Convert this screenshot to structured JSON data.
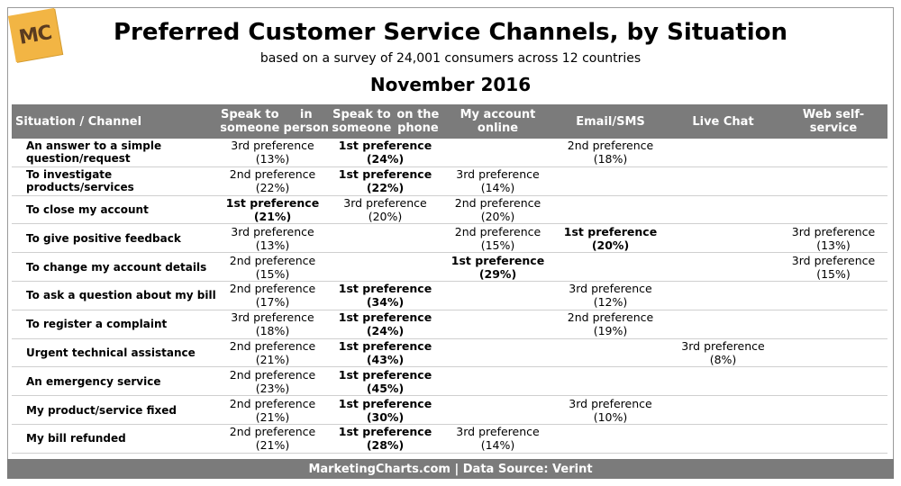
{
  "logo_text": "MC",
  "title": "Preferred Customer Service Channels, by Situation",
  "subtitle": "based on a survey of 24,001 consumers across 12 countries",
  "date": "November 2016",
  "footer": "MarketingCharts.com | Data Source: Verint",
  "chart_data": {
    "type": "table",
    "title": "Preferred Customer Service Channels, by Situation",
    "corner_label": "Situation / Channel",
    "columns": [
      [
        "Speak to someone",
        "in person"
      ],
      [
        "Speak to someone",
        "on the phone"
      ],
      [
        "My account online"
      ],
      [
        "Email/SMS"
      ],
      [
        "Live Chat"
      ],
      [
        "Web self-service"
      ]
    ],
    "rows": [
      {
        "label": [
          "An answer to a simple",
          "question/request"
        ],
        "cells": [
          {
            "rank": "3rd preference",
            "pct": "(13%)",
            "first": false
          },
          {
            "rank": "1st preference",
            "pct": "(24%)",
            "first": true
          },
          null,
          {
            "rank": "2nd preference",
            "pct": "(18%)",
            "first": false
          },
          null,
          null
        ]
      },
      {
        "label": [
          "To investigate",
          "products/services"
        ],
        "cells": [
          {
            "rank": "2nd preference",
            "pct": "(22%)",
            "first": false
          },
          {
            "rank": "1st preference",
            "pct": "(22%)",
            "first": true
          },
          {
            "rank": "3rd preference",
            "pct": "(14%)",
            "first": false
          },
          null,
          null,
          null
        ]
      },
      {
        "label": [
          "To close my account"
        ],
        "cells": [
          {
            "rank": "1st preference",
            "pct": "(21%)",
            "first": true
          },
          {
            "rank": "3rd preference",
            "pct": "(20%)",
            "first": false
          },
          {
            "rank": "2nd preference",
            "pct": "(20%)",
            "first": false
          },
          null,
          null,
          null
        ]
      },
      {
        "label": [
          "To give positive feedback"
        ],
        "cells": [
          {
            "rank": "3rd preference",
            "pct": "(13%)",
            "first": false
          },
          null,
          {
            "rank": "2nd preference",
            "pct": "(15%)",
            "first": false
          },
          {
            "rank": "1st preference",
            "pct": "(20%)",
            "first": true
          },
          null,
          {
            "rank": "3rd preference",
            "pct": "(13%)",
            "first": false
          }
        ]
      },
      {
        "label": [
          "To change my account details"
        ],
        "cells": [
          {
            "rank": "2nd preference",
            "pct": "(15%)",
            "first": false
          },
          null,
          {
            "rank": "1st preference",
            "pct": "(29%)",
            "first": true
          },
          null,
          null,
          {
            "rank": "3rd preference",
            "pct": "(15%)",
            "first": false
          }
        ]
      },
      {
        "label": [
          "To ask a question about my bill"
        ],
        "cells": [
          {
            "rank": "2nd preference",
            "pct": "(17%)",
            "first": false
          },
          {
            "rank": "1st preference",
            "pct": "(34%)",
            "first": true
          },
          null,
          {
            "rank": "3rd preference",
            "pct": "(12%)",
            "first": false
          },
          null,
          null
        ]
      },
      {
        "label": [
          "To register a complaint"
        ],
        "cells": [
          {
            "rank": "3rd preference",
            "pct": "(18%)",
            "first": false
          },
          {
            "rank": "1st preference",
            "pct": "(24%)",
            "first": true
          },
          null,
          {
            "rank": "2nd preference",
            "pct": "(19%)",
            "first": false
          },
          null,
          null
        ]
      },
      {
        "label": [
          "Urgent technical assistance"
        ],
        "cells": [
          {
            "rank": "2nd preference",
            "pct": "(21%)",
            "first": false
          },
          {
            "rank": "1st preference",
            "pct": "(43%)",
            "first": true
          },
          null,
          null,
          {
            "rank": "3rd preference",
            "pct": "(8%)",
            "first": false
          },
          null
        ]
      },
      {
        "label": [
          "An emergency service"
        ],
        "cells": [
          {
            "rank": "2nd preference",
            "pct": "(23%)",
            "first": false
          },
          {
            "rank": "1st preference",
            "pct": "(45%)",
            "first": true
          },
          null,
          null,
          null,
          null
        ]
      },
      {
        "label": [
          "My product/service fixed"
        ],
        "cells": [
          {
            "rank": "2nd preference",
            "pct": "(21%)",
            "first": false
          },
          {
            "rank": "1st preference",
            "pct": "(30%)",
            "first": true
          },
          null,
          {
            "rank": "3rd preference",
            "pct": "(10%)",
            "first": false
          },
          null,
          null
        ]
      },
      {
        "label": [
          "My bill refunded"
        ],
        "cells": [
          {
            "rank": "2nd preference",
            "pct": "(21%)",
            "first": false
          },
          {
            "rank": "1st preference",
            "pct": "(28%)",
            "first": true
          },
          {
            "rank": "3rd preference",
            "pct": "(14%)",
            "first": false
          },
          null,
          null,
          null
        ]
      }
    ]
  }
}
